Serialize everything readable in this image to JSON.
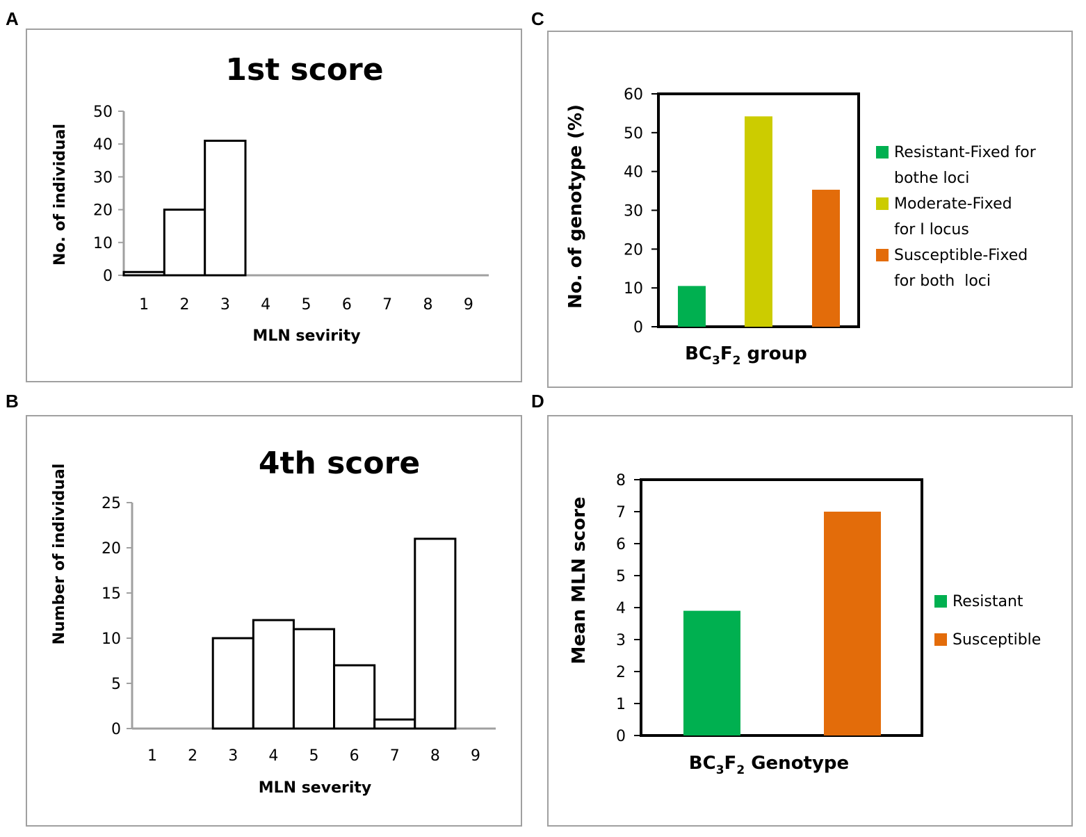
{
  "panels": {
    "A": {
      "letter": "A"
    },
    "B": {
      "letter": "B"
    },
    "C": {
      "letter": "C"
    },
    "D": {
      "letter": "D"
    }
  },
  "chart_data": [
    {
      "panel": "A",
      "type": "bar",
      "title": "1st score",
      "xlabel": "MLN sevirity",
      "ylabel": "No. of individual",
      "categories": [
        "1",
        "2",
        "3",
        "4",
        "5",
        "6",
        "7",
        "8",
        "9"
      ],
      "values": [
        1,
        20,
        41,
        0,
        0,
        0,
        0,
        0,
        0
      ],
      "yticks": [
        0,
        10,
        20,
        30,
        40,
        50
      ],
      "ylim": [
        0,
        50
      ],
      "grid": false
    },
    {
      "panel": "B",
      "type": "bar",
      "title": "4th score",
      "xlabel": "MLN severity",
      "ylabel": "Number of individual",
      "categories": [
        "1",
        "2",
        "3",
        "4",
        "5",
        "6",
        "7",
        "8",
        "9"
      ],
      "values": [
        0,
        0,
        10,
        12,
        11,
        7,
        1,
        21,
        0
      ],
      "yticks": [
        0,
        5,
        10,
        15,
        20,
        25
      ],
      "ylim": [
        0,
        25
      ],
      "grid": false
    },
    {
      "panel": "C",
      "type": "bar",
      "title": "",
      "xlabel_parts": [
        "BC",
        "3",
        "F",
        "2",
        " group"
      ],
      "ylabel": "No. of genotype (%)",
      "series": [
        {
          "name_lines": [
            "Resistant-Fixed for",
            "bothe loci"
          ],
          "value": 10.5,
          "color": "#00b050"
        },
        {
          "name_lines": [
            "Moderate-Fixed",
            "for I locus"
          ],
          "value": 54.2,
          "color": "#cccc00"
        },
        {
          "name_lines": [
            "Susceptible-Fixed",
            "for both  loci"
          ],
          "value": 35.3,
          "color": "#e36c0a"
        }
      ],
      "yticks": [
        0,
        10,
        20,
        30,
        40,
        50,
        60
      ],
      "ylim": [
        0,
        60
      ],
      "legend": "right",
      "grid": false
    },
    {
      "panel": "D",
      "type": "bar",
      "title": "",
      "xlabel_parts": [
        "BC",
        "3",
        "F",
        "2",
        " Genotype"
      ],
      "ylabel": "Mean MLN score",
      "series": [
        {
          "name_lines": [
            "Resistant"
          ],
          "value": 3.9,
          "color": "#00b050"
        },
        {
          "name_lines": [
            "Susceptible"
          ],
          "value": 7.0,
          "color": "#e36c0a"
        }
      ],
      "yticks": [
        0,
        1,
        2,
        3,
        4,
        5,
        6,
        7,
        8
      ],
      "ylim": [
        0,
        8
      ],
      "legend": "right",
      "grid": false
    }
  ]
}
